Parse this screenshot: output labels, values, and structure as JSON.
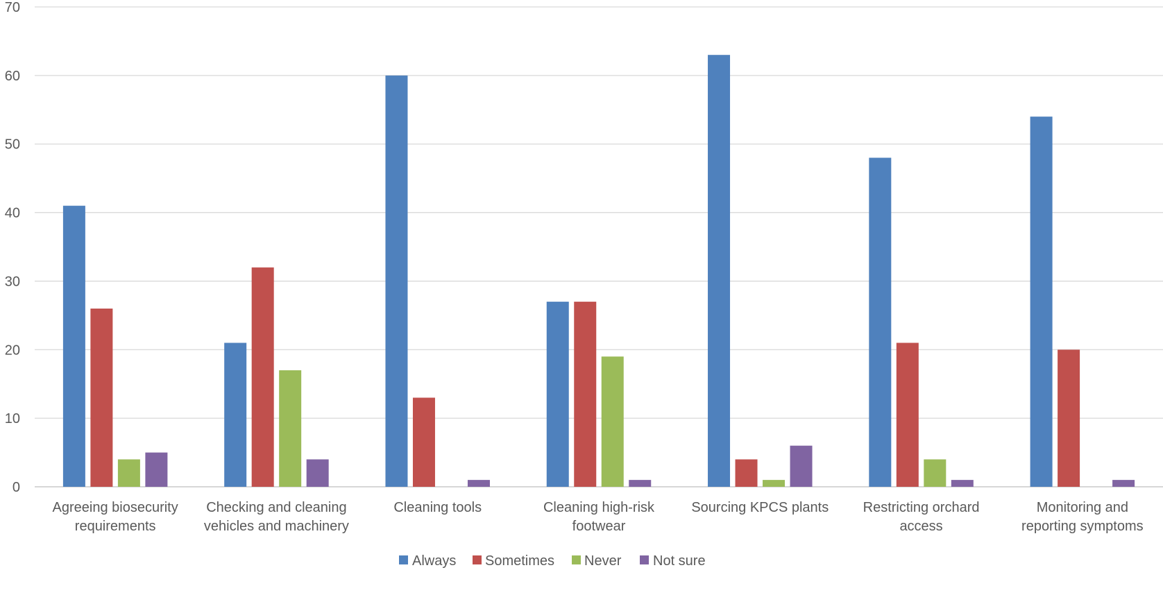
{
  "chart_data": {
    "type": "bar",
    "title": "",
    "xlabel": "",
    "ylabel": "",
    "ylim": [
      0,
      70
    ],
    "yticks": [
      0,
      10,
      20,
      30,
      40,
      50,
      60,
      70
    ],
    "grid": true,
    "legend_position": "bottom",
    "categories": [
      [
        "Agreeing biosecurity",
        "requirements"
      ],
      [
        "Checking and cleaning",
        "vehicles and machinery"
      ],
      [
        "Cleaning tools"
      ],
      [
        "Cleaning high-risk",
        "footwear"
      ],
      [
        "Sourcing KPCS plants"
      ],
      [
        "Restricting orchard",
        "access"
      ],
      [
        "Monitoring and",
        "reporting symptoms"
      ]
    ],
    "series": [
      {
        "name": "Always",
        "color": "#4f81bd",
        "values": [
          41,
          21,
          60,
          27,
          63,
          48,
          54
        ]
      },
      {
        "name": "Sometimes",
        "color": "#c0504d",
        "values": [
          26,
          32,
          13,
          27,
          4,
          21,
          20
        ]
      },
      {
        "name": "Never",
        "color": "#9bbb59",
        "values": [
          4,
          17,
          0,
          19,
          1,
          4,
          0
        ]
      },
      {
        "name": "Not sure",
        "color": "#8064a2",
        "values": [
          5,
          4,
          1,
          1,
          6,
          1,
          1
        ]
      }
    ]
  }
}
